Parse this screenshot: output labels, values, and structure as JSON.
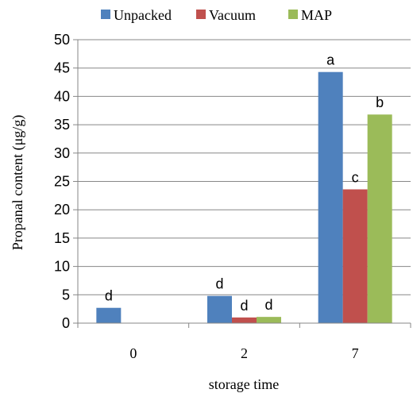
{
  "chart_data": {
    "type": "bar",
    "categories": [
      "0",
      "2",
      "7"
    ],
    "series": [
      {
        "name": "Unpacked",
        "color": "#4f81bd",
        "values": [
          2.7,
          4.8,
          44.3
        ],
        "labels": [
          "d",
          "d",
          "a"
        ]
      },
      {
        "name": "Vacuum",
        "color": "#c0504d",
        "values": [
          0,
          1.0,
          23.6
        ],
        "labels": [
          "",
          "d",
          "c"
        ]
      },
      {
        "name": "MAP",
        "color": "#9bbb59",
        "values": [
          0,
          1.1,
          36.8
        ],
        "labels": [
          "",
          "d",
          "b"
        ]
      }
    ],
    "xlabel": "storage time",
    "ylabel": "Propanal content (μg/g)",
    "ylim": [
      0,
      50
    ],
    "yticks": [
      0,
      5,
      10,
      15,
      20,
      25,
      30,
      35,
      40,
      45,
      50
    ],
    "grid": true,
    "legend_position": "top"
  }
}
